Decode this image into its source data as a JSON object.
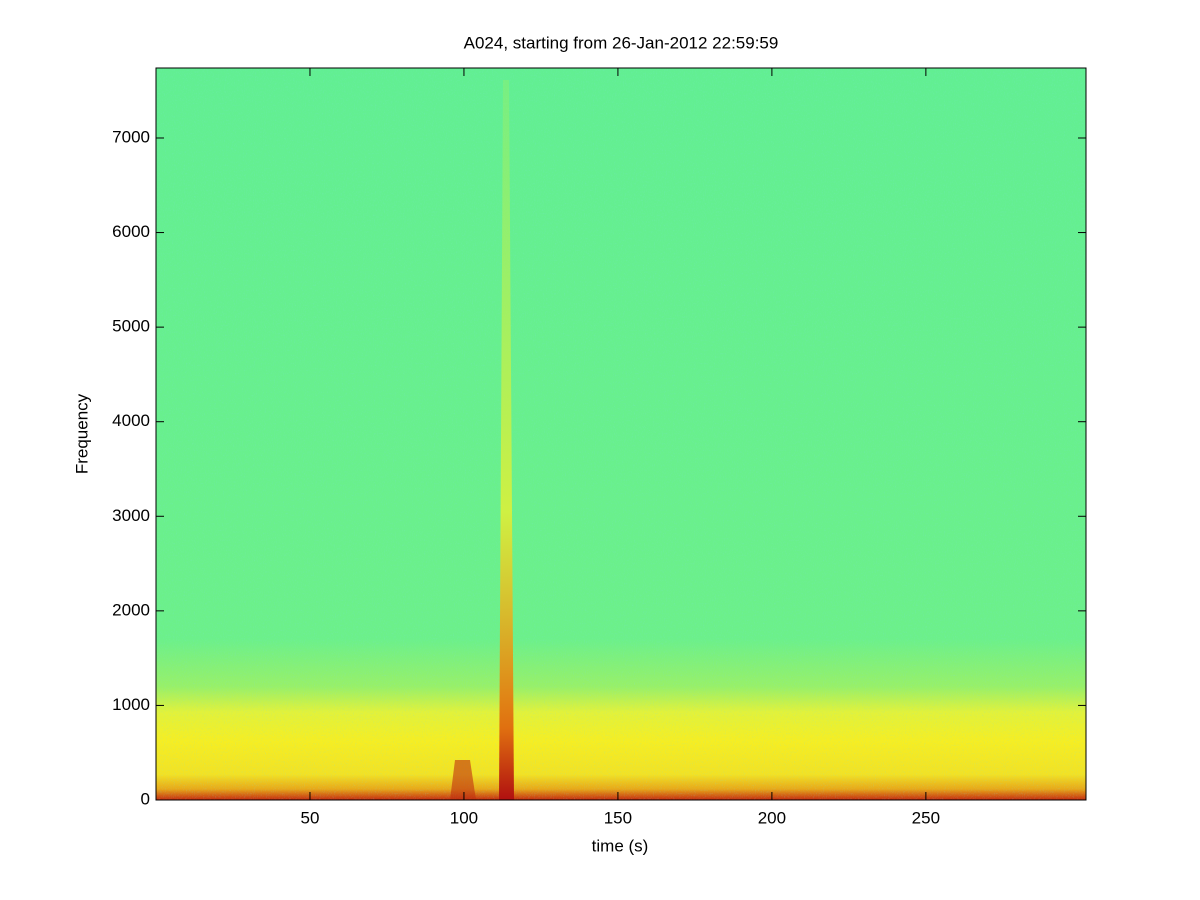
{
  "chart_data": {
    "type": "spectrogram",
    "title": "A024, starting from 26-Jan-2012 22:59:59",
    "x_label": "time (s)",
    "y_label": "Frequency",
    "xlim": [
      0,
      302
    ],
    "xticks": [
      50,
      100,
      150,
      200,
      250
    ],
    "ylim": [
      0,
      7740
    ],
    "yticks": [
      0,
      1000,
      2000,
      3000,
      4000,
      5000,
      6000,
      7000
    ]
  }
}
